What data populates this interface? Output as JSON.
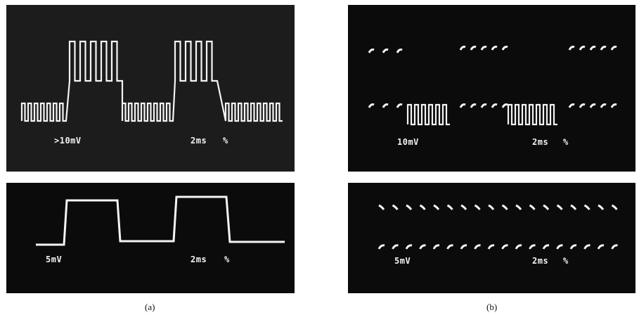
{
  "figure": {
    "panel_a": {
      "caption": "(a)",
      "top_trace": {
        "voltage_label": ">10mV",
        "time_label": "2ms",
        "marker": "%"
      },
      "bottom_trace": {
        "voltage_label": "5mV",
        "time_label": "2ms",
        "marker": "%"
      }
    },
    "panel_b": {
      "caption": "(b)",
      "top_trace": {
        "voltage_label": "10mV",
        "time_label": "2ms",
        "marker": "%"
      },
      "bottom_trace": {
        "voltage_label": "5mV",
        "time_label": "2ms",
        "marker": "%"
      }
    }
  },
  "colors": {
    "screen": "#0b0b0b",
    "trace": "#f4f4f4",
    "page": "#ffffff"
  }
}
